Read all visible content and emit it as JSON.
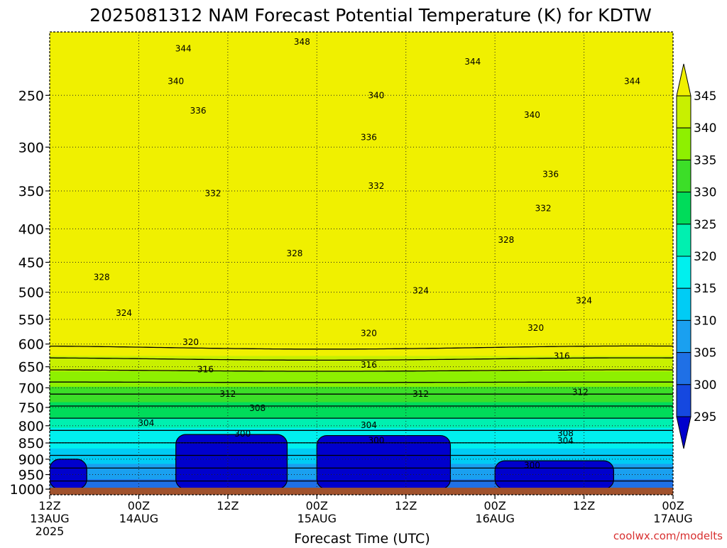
{
  "page": {
    "title": "2025081312 NAM Forecast Potential Temperature (K) for KDTW",
    "watermark": "coolwx.com/modelts"
  },
  "chart_data": {
    "type": "heatmap",
    "title": "2025081312 NAM Forecast Potential Temperature (K) for KDTW",
    "xlabel": "Forecast Time (UTC)",
    "ylabel": "",
    "x_ticks": [
      {
        "label": "12Z",
        "sub": "13AUG",
        "sub2": "2025"
      },
      {
        "label": "00Z",
        "sub": "14AUG",
        "sub2": ""
      },
      {
        "label": "12Z",
        "sub": "",
        "sub2": ""
      },
      {
        "label": "00Z",
        "sub": "15AUG",
        "sub2": ""
      },
      {
        "label": "12Z",
        "sub": "",
        "sub2": ""
      },
      {
        "label": "00Z",
        "sub": "16AUG",
        "sub2": ""
      },
      {
        "label": "12Z",
        "sub": "",
        "sub2": ""
      },
      {
        "label": "00Z",
        "sub": "17AUG",
        "sub2": ""
      }
    ],
    "x_hours": [
      0,
      12,
      24,
      36,
      48,
      60,
      72,
      84
    ],
    "xlim": [
      0,
      84
    ],
    "y_ticks": [
      "250",
      "300",
      "350",
      "400",
      "450",
      "500",
      "550",
      "600",
      "650",
      "700",
      "750",
      "800",
      "850",
      "900",
      "950",
      "1000"
    ],
    "y_values": [
      250,
      300,
      350,
      400,
      450,
      500,
      550,
      600,
      650,
      700,
      750,
      800,
      850,
      900,
      950,
      1000
    ],
    "ylim": [
      200,
      1020
    ],
    "y_scale": "log-pressure (inverted)",
    "grid": true,
    "colorbar": {
      "labels": [
        "295",
        "300",
        "305",
        "310",
        "315",
        "320",
        "325",
        "330",
        "335",
        "340",
        "345"
      ],
      "levels": [
        295,
        300,
        305,
        310,
        315,
        320,
        325,
        330,
        335,
        340,
        345
      ],
      "colors": [
        "#0000cd",
        "#1548e0",
        "#1f70e6",
        "#1aa0f0",
        "#00ccf5",
        "#00f0ee",
        "#00f0b0",
        "#00dc5a",
        "#3cde28",
        "#8ef000",
        "#c8f000",
        "#f0f000"
      ]
    },
    "contour_labels": [
      {
        "text": "348",
        "x": 34.0,
        "p": 207
      },
      {
        "text": "344",
        "x": 18.0,
        "p": 212
      },
      {
        "text": "344",
        "x": 57.0,
        "p": 222
      },
      {
        "text": "344",
        "x": 78.5,
        "p": 238
      },
      {
        "text": "340",
        "x": 17.0,
        "p": 238
      },
      {
        "text": "340",
        "x": 44.0,
        "p": 250
      },
      {
        "text": "340",
        "x": 65.0,
        "p": 268
      },
      {
        "text": "336",
        "x": 20.0,
        "p": 264
      },
      {
        "text": "336",
        "x": 43.0,
        "p": 290
      },
      {
        "text": "336",
        "x": 67.5,
        "p": 330
      },
      {
        "text": "332",
        "x": 22.0,
        "p": 353
      },
      {
        "text": "332",
        "x": 44.0,
        "p": 344
      },
      {
        "text": "332",
        "x": 66.5,
        "p": 372
      },
      {
        "text": "328",
        "x": 7.0,
        "p": 474
      },
      {
        "text": "328",
        "x": 33.0,
        "p": 436
      },
      {
        "text": "328",
        "x": 61.5,
        "p": 416
      },
      {
        "text": "324",
        "x": 10.0,
        "p": 538
      },
      {
        "text": "324",
        "x": 50.0,
        "p": 497
      },
      {
        "text": "324",
        "x": 72.0,
        "p": 515
      },
      {
        "text": "320",
        "x": 19.0,
        "p": 596
      },
      {
        "text": "320",
        "x": 43.0,
        "p": 578
      },
      {
        "text": "320",
        "x": 65.5,
        "p": 567
      },
      {
        "text": "316",
        "x": 21.0,
        "p": 656
      },
      {
        "text": "316",
        "x": 43.0,
        "p": 646
      },
      {
        "text": "316",
        "x": 69.0,
        "p": 626
      },
      {
        "text": "312",
        "x": 24.0,
        "p": 715
      },
      {
        "text": "312",
        "x": 50.0,
        "p": 715
      },
      {
        "text": "312",
        "x": 71.5,
        "p": 711
      },
      {
        "text": "308",
        "x": 28.0,
        "p": 752
      },
      {
        "text": "308",
        "x": 69.5,
        "p": 822
      },
      {
        "text": "304",
        "x": 13.0,
        "p": 792
      },
      {
        "text": "304",
        "x": 43.0,
        "p": 798
      },
      {
        "text": "304",
        "x": 69.5,
        "p": 844
      },
      {
        "text": "300",
        "x": 26.0,
        "p": 823
      },
      {
        "text": "300",
        "x": 44.0,
        "p": 842
      },
      {
        "text": "300",
        "x": 65.0,
        "p": 920
      }
    ],
    "low_regions": [
      {
        "x0": 0,
        "x1": 5,
        "p0": 900
      },
      {
        "x0": 17,
        "x1": 32,
        "p0": 825
      },
      {
        "x0": 36,
        "x1": 54,
        "p0": 828
      },
      {
        "x0": 60,
        "x1": 76,
        "p0": 905
      }
    ],
    "ground_pressure": 1000
  }
}
